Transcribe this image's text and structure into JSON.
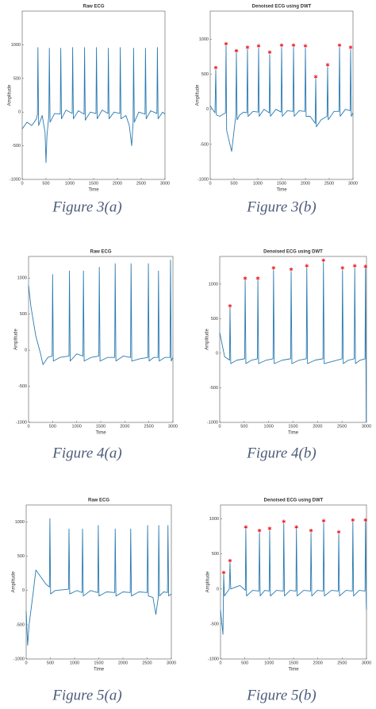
{
  "chart_data": [
    {
      "type": "line",
      "title": "Raw ECG",
      "xlabel": "Time",
      "ylabel": "Amplitude",
      "caption": "Figure 3(a)",
      "xlim": [
        0,
        3000
      ],
      "ylim": [
        -1000,
        1500
      ],
      "xticks": [
        0,
        500,
        1000,
        1500,
        2000,
        2500,
        3000
      ],
      "yticks": [
        -1000,
        -500,
        0,
        500,
        1000
      ],
      "series": [
        {
          "style": "line",
          "color": "#2a7ab0",
          "x": [
            0,
            100,
            200,
            300,
            320,
            330,
            345,
            420,
            480,
            500,
            520,
            560,
            570,
            585,
            680,
            800,
            810,
            825,
            920,
            1050,
            1060,
            1075,
            1180,
            1300,
            1310,
            1325,
            1430,
            1550,
            1560,
            1575,
            1680,
            1800,
            1810,
            1825,
            1930,
            2050,
            2060,
            2075,
            2180,
            2250,
            2300,
            2330,
            2340,
            2355,
            2450,
            2580,
            2590,
            2605,
            2700,
            2830,
            2840,
            2855,
            2950,
            3000
          ],
          "values": [
            -250,
            -150,
            -200,
            -100,
            -30,
            960,
            -200,
            -50,
            -300,
            -750,
            -350,
            -50,
            950,
            -150,
            -20,
            -30,
            950,
            -100,
            30,
            -20,
            960,
            -100,
            20,
            -30,
            960,
            -120,
            0,
            -20,
            960,
            -100,
            30,
            -20,
            950,
            -100,
            0,
            -20,
            960,
            -100,
            -50,
            -200,
            -500,
            -150,
            950,
            -150,
            0,
            -30,
            950,
            -100,
            20,
            -20,
            960,
            -100,
            0,
            -30
          ]
        }
      ]
    },
    {
      "type": "line",
      "title": "Denoised ECG using DWT",
      "xlabel": "Time",
      "ylabel": "Amplitude",
      "caption": "Figure 3(b)",
      "xlim": [
        0,
        3000
      ],
      "ylim": [
        -1000,
        1400
      ],
      "xticks": [
        0,
        500,
        1000,
        1500,
        2000,
        2500,
        3000
      ],
      "yticks": [
        -1000,
        -500,
        0,
        500,
        1000
      ],
      "series": [
        {
          "style": "line",
          "color": "#2a7ab0",
          "x": [
            0,
            100,
            117,
            130,
            200,
            320,
            333,
            345,
            450,
            540,
            550,
            565,
            620,
            700,
            770,
            783,
            795,
            900,
            1005,
            1017,
            1030,
            1130,
            1240,
            1250,
            1265,
            1380,
            1490,
            1500,
            1515,
            1620,
            1740,
            1750,
            1765,
            1870,
            1990,
            2000,
            2015,
            2100,
            2205,
            2217,
            2230,
            2330,
            2455,
            2467,
            2480,
            2600,
            2705,
            2717,
            2730,
            2840,
            2940,
            2950,
            2965,
            3000
          ],
          "values": [
            50,
            -50,
            560,
            -80,
            -100,
            -50,
            900,
            -300,
            -600,
            -80,
            800,
            -150,
            -80,
            -40,
            -50,
            850,
            -100,
            -30,
            -40,
            870,
            -100,
            0,
            -50,
            780,
            -100,
            0,
            -40,
            880,
            -100,
            -20,
            -30,
            880,
            -100,
            -20,
            -30,
            870,
            -100,
            -100,
            -200,
            430,
            -250,
            -150,
            -100,
            600,
            -150,
            -30,
            -30,
            880,
            -100,
            0,
            -20,
            850,
            -100,
            -50
          ]
        },
        {
          "style": "star",
          "color": "#e8141c",
          "x": [
            117,
            333,
            550,
            783,
            1017,
            1250,
            1500,
            1750,
            2000,
            2217,
            2467,
            2717,
            2950
          ],
          "values": [
            560,
            900,
            800,
            850,
            870,
            780,
            880,
            880,
            870,
            430,
            600,
            880,
            850
          ]
        }
      ]
    },
    {
      "type": "line",
      "title": "Raw ECG",
      "xlabel": "Time",
      "ylabel": "Amplitude",
      "caption": "Figure 4(a)",
      "xlim": [
        0,
        3000
      ],
      "ylim": [
        -1000,
        1300
      ],
      "xticks": [
        0,
        500,
        1000,
        1500,
        2000,
        2500,
        3000
      ],
      "yticks": [
        -1000,
        -500,
        0,
        500,
        1000
      ],
      "series": [
        {
          "style": "line",
          "color": "#2a7ab0",
          "x": [
            0,
            50,
            150,
            250,
            300,
            400,
            490,
            500,
            515,
            650,
            840,
            850,
            865,
            1000,
            1130,
            1140,
            1155,
            1300,
            1460,
            1470,
            1485,
            1640,
            1790,
            1800,
            1815,
            1970,
            2120,
            2130,
            2145,
            2300,
            2480,
            2490,
            2505,
            2600,
            2690,
            2700,
            2715,
            2830,
            2940,
            2950,
            2965,
            3000
          ],
          "values": [
            900,
            600,
            200,
            -50,
            -200,
            -100,
            -80,
            1050,
            -150,
            -100,
            -80,
            1100,
            -150,
            -50,
            -80,
            1100,
            -150,
            -100,
            -80,
            1150,
            -150,
            -100,
            -100,
            1200,
            -150,
            -80,
            -100,
            1200,
            -150,
            -120,
            -100,
            1200,
            -150,
            -100,
            -100,
            1100,
            -150,
            -100,
            -100,
            1250,
            -150,
            -100
          ]
        }
      ]
    },
    {
      "type": "line",
      "title": "Denoised ECG using DWT",
      "xlabel": "Time",
      "ylabel": "Amplitude",
      "caption": "Figure 4(b)",
      "xlim": [
        0,
        3000
      ],
      "ylim": [
        -1000,
        1400
      ],
      "xticks": [
        0,
        500,
        1000,
        1500,
        2000,
        2500,
        3000
      ],
      "yticks": [
        -1000,
        -500,
        0,
        500,
        1000
      ],
      "series": [
        {
          "style": "line",
          "color": "#2a7ab0",
          "x": [
            0,
            100,
            200,
            210,
            225,
            350,
            510,
            520,
            535,
            650,
            770,
            780,
            795,
            950,
            1090,
            1100,
            1115,
            1280,
            1450,
            1460,
            1475,
            1620,
            1770,
            1780,
            1795,
            1950,
            2110,
            2120,
            2135,
            2300,
            2500,
            2510,
            2525,
            2630,
            2750,
            2760,
            2775,
            2870,
            2970,
            2980,
            2995
          ],
          "values": [
            300,
            -50,
            -100,
            650,
            -150,
            -100,
            -80,
            1050,
            -150,
            -100,
            -80,
            1050,
            -150,
            -100,
            -80,
            1200,
            -150,
            -100,
            -80,
            1180,
            -150,
            -100,
            -80,
            1230,
            -150,
            -100,
            -80,
            1310,
            -150,
            -120,
            -80,
            1200,
            -150,
            -100,
            -80,
            1230,
            -150,
            -100,
            -80,
            1220,
            -1000
          ]
        },
        {
          "style": "star",
          "color": "#e8141c",
          "x": [
            210,
            520,
            780,
            1100,
            1460,
            1780,
            2120,
            2510,
            2760,
            2980
          ],
          "values": [
            650,
            1050,
            1050,
            1200,
            1180,
            1230,
            1310,
            1200,
            1230,
            1220
          ]
        }
      ]
    },
    {
      "type": "line",
      "title": "Raw ECG",
      "xlabel": "Time",
      "ylabel": "Amplitude",
      "caption": "Figure 5(a)",
      "xlim": [
        0,
        3000
      ],
      "ylim": [
        -1000,
        1250
      ],
      "xticks": [
        0,
        500,
        1000,
        1500,
        2000,
        2500,
        3000
      ],
      "yticks": [
        -1000,
        -500,
        0,
        500,
        1000
      ],
      "series": [
        {
          "style": "line",
          "color": "#2a7ab0",
          "x": [
            0,
            30,
            60,
            150,
            200,
            300,
            400,
            480,
            490,
            505,
            600,
            875,
            885,
            900,
            1050,
            1155,
            1165,
            1180,
            1330,
            1480,
            1490,
            1505,
            1660,
            1830,
            1840,
            1855,
            2000,
            2150,
            2160,
            2175,
            2330,
            2500,
            2510,
            2525,
            2620,
            2680,
            2730,
            2740,
            2755,
            2840,
            2920,
            2930,
            2945,
            3000
          ],
          "values": [
            -300,
            -800,
            -500,
            0,
            300,
            200,
            100,
            50,
            1050,
            -50,
            0,
            20,
            900,
            -50,
            0,
            -30,
            900,
            -80,
            0,
            -30,
            950,
            -80,
            -20,
            -30,
            900,
            -80,
            -20,
            -30,
            900,
            -80,
            -20,
            -30,
            950,
            -80,
            -100,
            -350,
            -100,
            950,
            -80,
            -20,
            -30,
            950,
            -80,
            -50
          ]
        }
      ]
    },
    {
      "type": "line",
      "title": "Denoised ECG using DWT",
      "xlabel": "Time",
      "ylabel": "Amplitude",
      "caption": "Figure 5(b)",
      "xlim": [
        0,
        3000
      ],
      "ylim": [
        -1000,
        1200
      ],
      "xticks": [
        0,
        500,
        1000,
        1500,
        2000,
        2500,
        3000
      ],
      "yticks": [
        -1000,
        -500,
        0,
        500,
        1000
      ],
      "series": [
        {
          "style": "line",
          "color": "#2a7ab0",
          "x": [
            0,
            50,
            65,
            80,
            180,
            195,
            210,
            400,
            510,
            520,
            535,
            660,
            790,
            800,
            815,
            910,
            1000,
            1010,
            1025,
            1150,
            1290,
            1300,
            1315,
            1430,
            1550,
            1560,
            1575,
            1710,
            1850,
            1860,
            1875,
            1990,
            2110,
            2120,
            2135,
            2280,
            2420,
            2430,
            2445,
            2580,
            2710,
            2720,
            2735,
            2850,
            2970,
            2980,
            2995,
            3000
          ],
          "values": [
            -300,
            -650,
            200,
            -100,
            0,
            370,
            0,
            50,
            -20,
            850,
            -100,
            -20,
            -30,
            800,
            -100,
            -20,
            -30,
            830,
            -100,
            -20,
            -30,
            930,
            -100,
            -20,
            -30,
            850,
            -100,
            -20,
            -30,
            800,
            -100,
            -20,
            -30,
            940,
            -100,
            -20,
            -30,
            780,
            -100,
            -20,
            -30,
            950,
            -100,
            -20,
            -30,
            950,
            -200,
            -300
          ]
        },
        {
          "style": "star",
          "color": "#e8141c",
          "x": [
            65,
            195,
            520,
            800,
            1010,
            1300,
            1560,
            1860,
            2120,
            2430,
            2720,
            2980
          ],
          "values": [
            200,
            370,
            850,
            800,
            830,
            930,
            850,
            800,
            940,
            780,
            950,
            950
          ]
        }
      ]
    }
  ]
}
